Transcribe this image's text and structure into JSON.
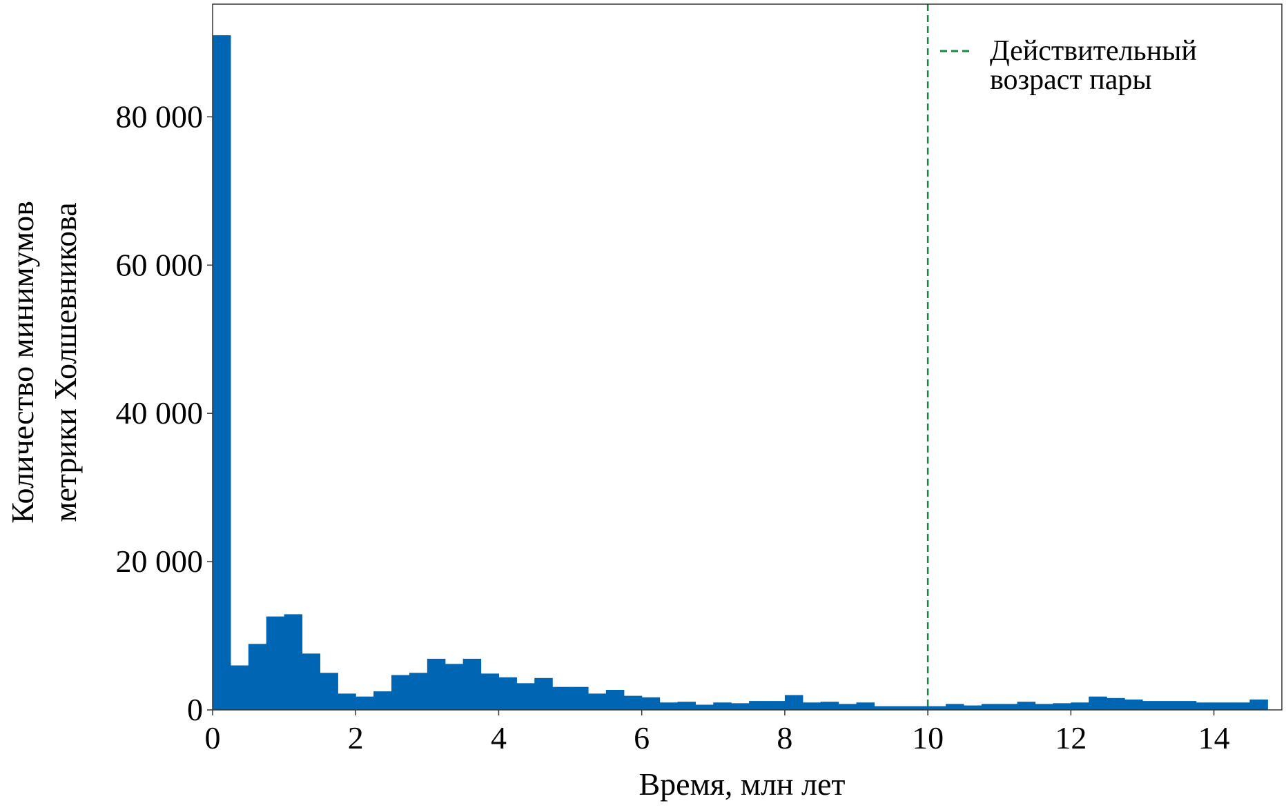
{
  "chart_data": {
    "type": "bar",
    "subtype": "histogram",
    "title": "",
    "xlabel": "Время, млн лет",
    "ylabel_lines": [
      "Количество минимумов",
      "метрики Холшевникова"
    ],
    "xlim": [
      0,
      14.95
    ],
    "ylim": [
      0,
      95200
    ],
    "xticks": [
      0,
      2,
      4,
      6,
      8,
      10,
      12,
      14
    ],
    "xtick_labels": [
      "0",
      "2",
      "4",
      "6",
      "8",
      "10",
      "12",
      "14"
    ],
    "yticks": [
      0,
      20000,
      40000,
      60000,
      80000
    ],
    "ytick_labels": [
      "0",
      "20 000",
      "40 000",
      "60 000",
      "80 000"
    ],
    "grid": false,
    "bin_width": 0.25,
    "bin_starts": [
      0,
      0.25,
      0.5,
      0.75,
      1,
      1.25,
      1.5,
      1.75,
      2,
      2.25,
      2.5,
      2.75,
      3,
      3.25,
      3.5,
      3.75,
      4,
      4.25,
      4.5,
      4.75,
      5,
      5.25,
      5.5,
      5.75,
      6,
      6.25,
      6.5,
      6.75,
      7,
      7.25,
      7.5,
      7.75,
      8,
      8.25,
      8.5,
      8.75,
      9,
      9.25,
      9.5,
      9.75,
      10,
      10.25,
      10.5,
      10.75,
      11,
      11.25,
      11.5,
      11.75,
      12,
      12.25,
      12.5,
      12.75,
      13,
      13.25,
      13.5,
      13.75,
      14,
      14.25,
      14.5
    ],
    "values": [
      91000,
      6000,
      8900,
      12600,
      12900,
      7600,
      5000,
      2200,
      1800,
      2500,
      4700,
      5000,
      6900,
      6200,
      6900,
      4900,
      4400,
      3600,
      4300,
      3100,
      3100,
      2200,
      2700,
      1900,
      1700,
      1000,
      1100,
      700,
      1000,
      900,
      1200,
      1200,
      2000,
      1000,
      1100,
      800,
      1000,
      500,
      500,
      500,
      500,
      800,
      600,
      800,
      800,
      1100,
      800,
      900,
      1000,
      1800,
      1600,
      1400,
      1200,
      1200,
      1200,
      1000,
      1000,
      1000,
      1400
    ],
    "bar_color": "#0066b3",
    "vline": {
      "x": 10,
      "color": "#138a3c",
      "style": "dashed"
    },
    "legend": {
      "placement": "top-right",
      "entry_lines": [
        "Действительный",
        "возраст пары"
      ]
    }
  }
}
